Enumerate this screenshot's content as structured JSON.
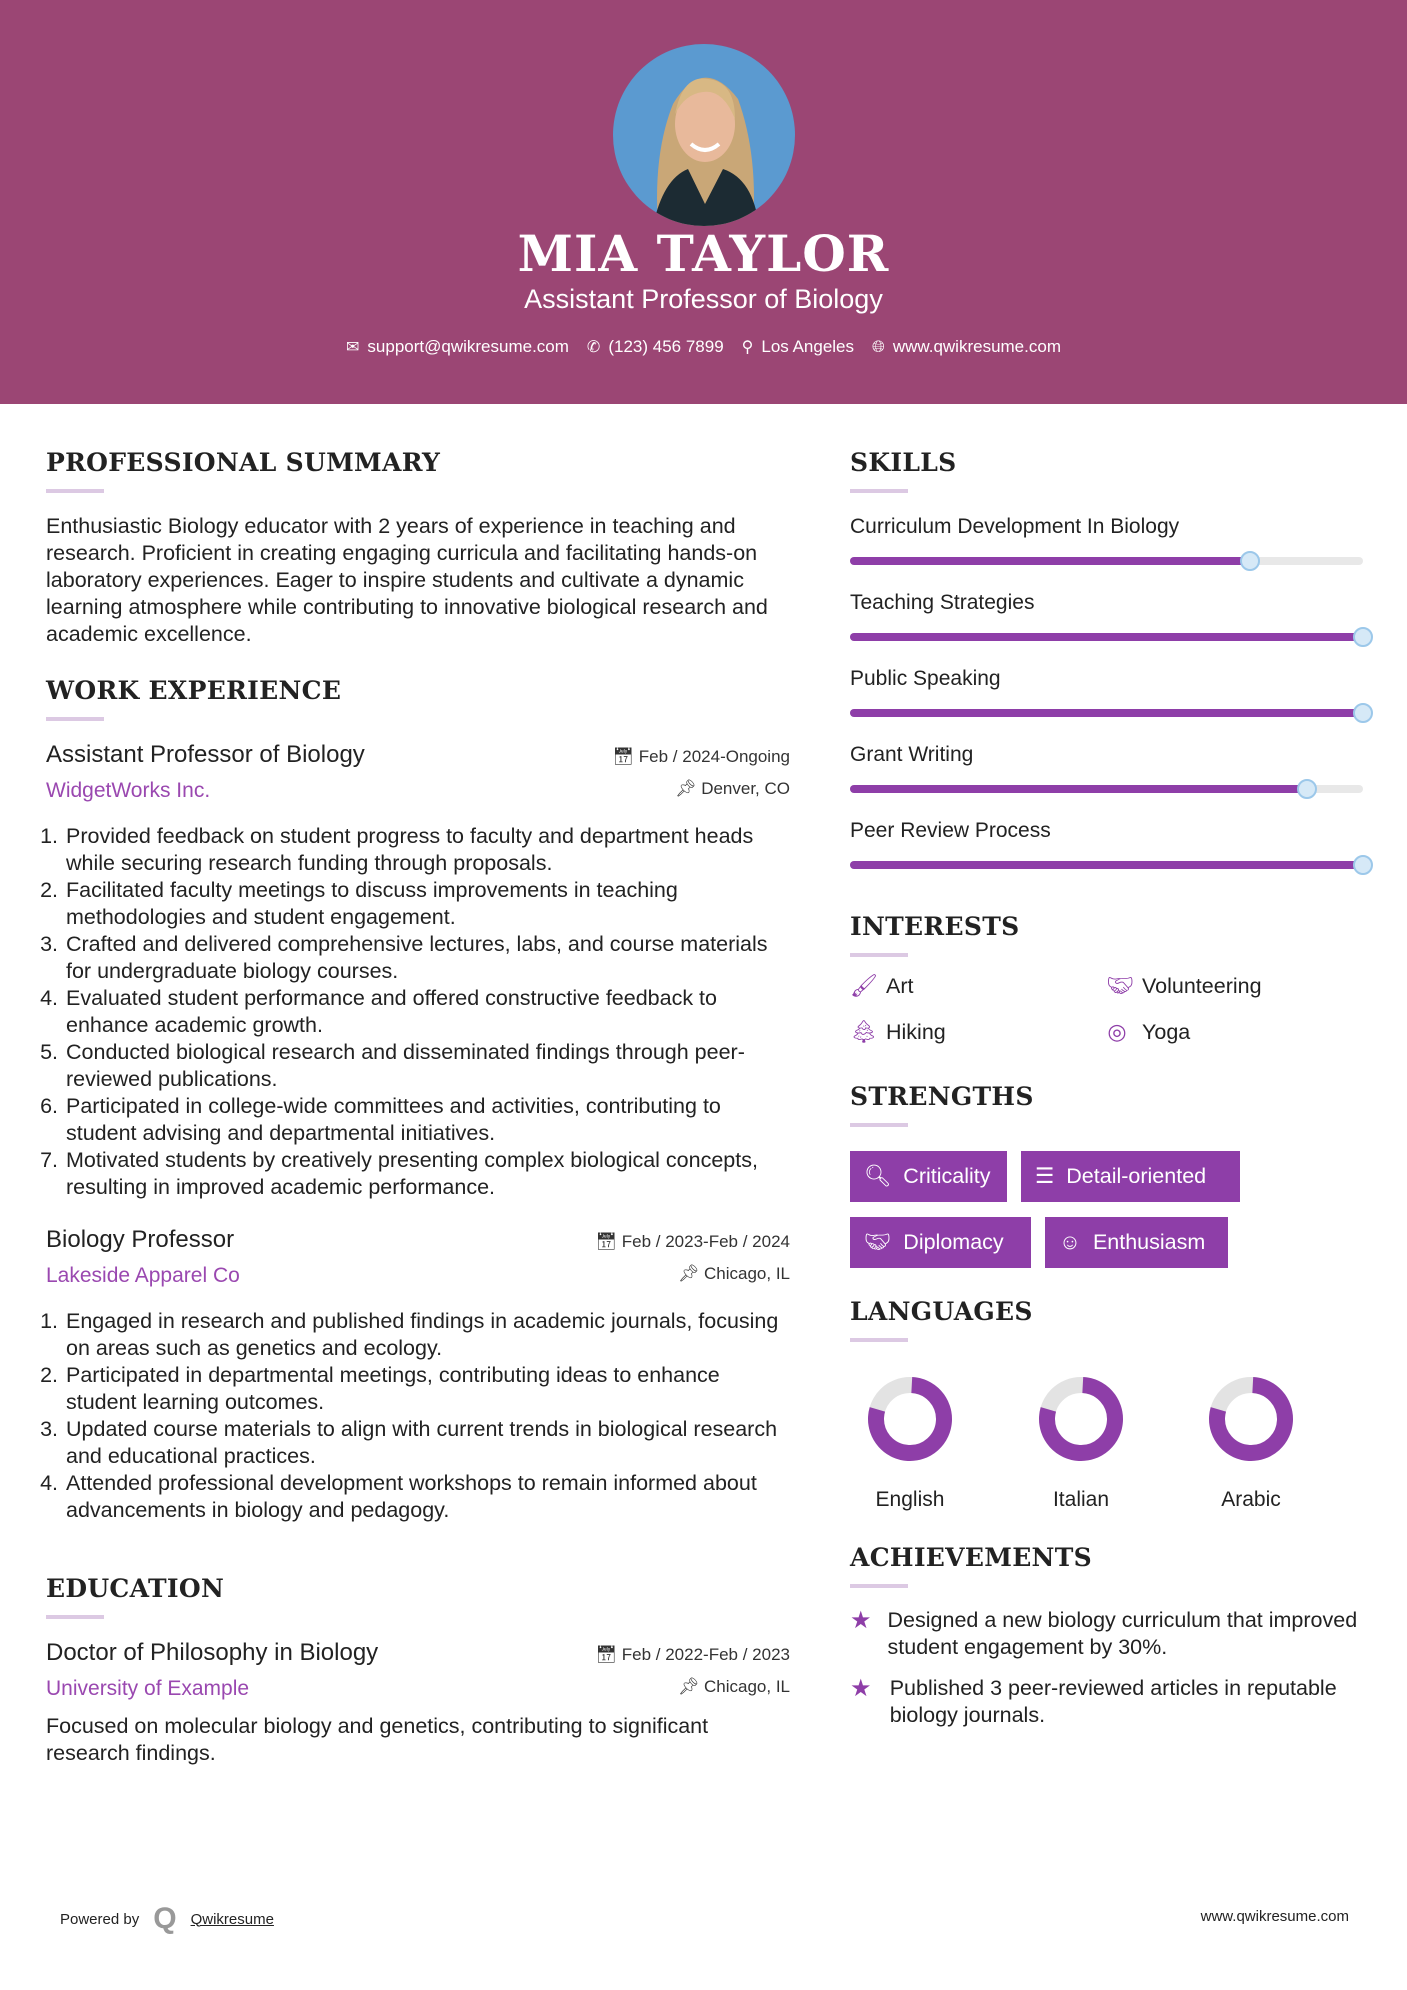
{
  "header": {
    "name": "MIA TAYLOR",
    "title": "Assistant Professor of Biology",
    "email": "support@qwikresume.com",
    "phone": "(123) 456 7899",
    "location": "Los Angeles",
    "website": "www.qwikresume.com"
  },
  "colors": {
    "header_bg": "#9b4674",
    "accent": "#8e3ea8"
  },
  "summary": {
    "heading": "PROFESSIONAL SUMMARY",
    "text": "Enthusiastic Biology educator with 2 years of experience in teaching and research. Proficient in creating engaging curricula and facilitating hands-on laboratory experiences. Eager to inspire students and cultivate a dynamic learning atmosphere while contributing to innovative biological research and academic excellence."
  },
  "work": {
    "heading": "WORK EXPERIENCE",
    "jobs": [
      {
        "title": "Assistant Professor of Biology",
        "company": "WidgetWorks Inc.",
        "dates": "Feb / 2024-Ongoing",
        "location": "Denver, CO",
        "items": [
          "Provided feedback on student progress to faculty and department heads while securing research funding through proposals.",
          "Facilitated faculty meetings to discuss improvements in teaching methodologies and student engagement.",
          "Crafted and delivered comprehensive lectures, labs, and course materials for undergraduate biology courses.",
          "Evaluated student performance and offered constructive feedback to enhance academic growth.",
          "Conducted biological research and disseminated findings through peer-reviewed publications.",
          "Participated in college-wide committees and activities, contributing to student advising and departmental initiatives.",
          "Motivated students by creatively presenting complex biological concepts, resulting in improved academic performance."
        ]
      },
      {
        "title": "Biology Professor",
        "company": "Lakeside Apparel Co",
        "dates": "Feb / 2023-Feb / 2024",
        "location": "Chicago, IL",
        "items": [
          "Engaged in research and published findings in academic journals, focusing on areas such as genetics and ecology.",
          "Participated in departmental meetings, contributing ideas to enhance student learning outcomes.",
          "Updated course materials to align with current trends in biological research and educational practices.",
          "Attended professional development workshops to remain informed about advancements in biology and pedagogy."
        ]
      }
    ]
  },
  "education": {
    "heading": "EDUCATION",
    "degree": "Doctor of Philosophy in Biology",
    "school": "University of Example",
    "dates": "Feb / 2022-Feb / 2023",
    "location": "Chicago, IL",
    "text": "Focused on molecular biology and genetics, contributing to significant research findings."
  },
  "skills": {
    "heading": "SKILLS",
    "items": [
      {
        "label": "Curriculum Development In Biology",
        "level": 78
      },
      {
        "label": "Teaching Strategies",
        "level": 100
      },
      {
        "label": "Public Speaking",
        "level": 100
      },
      {
        "label": "Grant Writing",
        "level": 89
      },
      {
        "label": "Peer Review Process",
        "level": 100
      }
    ]
  },
  "interests": {
    "heading": "INTERESTS",
    "items": [
      {
        "label": "Art",
        "icon": "paintbrush-icon"
      },
      {
        "label": "Volunteering",
        "icon": "handshake-icon"
      },
      {
        "label": "Hiking",
        "icon": "tree-icon"
      },
      {
        "label": "Yoga",
        "icon": "lifering-icon"
      }
    ]
  },
  "strengths": {
    "heading": "STRENGTHS",
    "items": [
      {
        "label": "Criticality",
        "icon": "search-icon"
      },
      {
        "label": "Detail-oriented",
        "icon": "list-icon"
      },
      {
        "label": "Diplomacy",
        "icon": "handshake-icon"
      },
      {
        "label": "Enthusiasm",
        "icon": "smile-icon"
      }
    ]
  },
  "languages": {
    "heading": "LANGUAGES",
    "items": [
      {
        "label": "English",
        "level": 80
      },
      {
        "label": "Italian",
        "level": 80
      },
      {
        "label": "Arabic",
        "level": 80
      }
    ]
  },
  "achievements": {
    "heading": "ACHIEVEMENTS",
    "items": [
      "Designed a new biology curriculum that improved student engagement by 30%.",
      "Published 3 peer-reviewed articles in reputable biology journals."
    ]
  },
  "footer": {
    "powered_by": "Powered by",
    "brand": "Qwikresume",
    "website": "www.qwikresume.com"
  }
}
